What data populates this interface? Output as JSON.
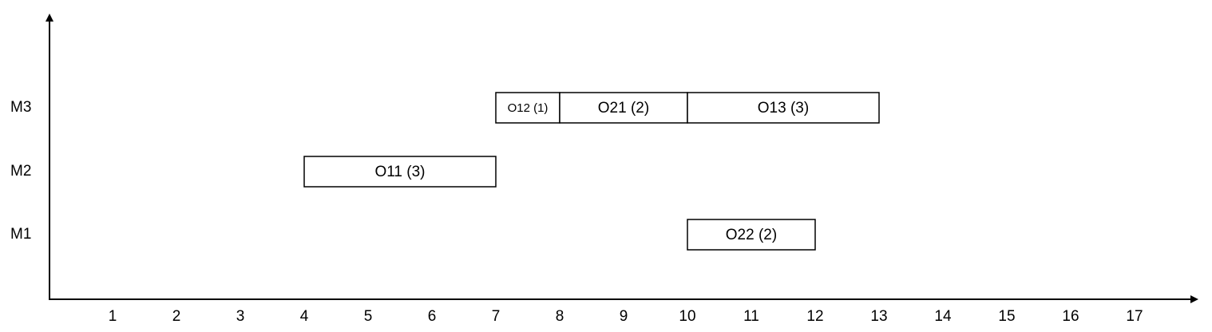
{
  "chart_data": {
    "type": "gantt",
    "title": "",
    "xlabel": "",
    "ylabel": "",
    "x_ticks": [
      1,
      2,
      3,
      4,
      5,
      6,
      7,
      8,
      9,
      10,
      11,
      12,
      13,
      14,
      15,
      16,
      17
    ],
    "xlim": [
      0,
      18
    ],
    "rows": [
      "M1",
      "M2",
      "M3"
    ],
    "tasks": [
      {
        "label": "O12 (1)",
        "row": "M3",
        "start": 7,
        "end": 8
      },
      {
        "label": "O21 (2)",
        "row": "M3",
        "start": 8,
        "end": 10
      },
      {
        "label": "O13 (3)",
        "row": "M3",
        "start": 10,
        "end": 13
      },
      {
        "label": "O11 (3)",
        "row": "M2",
        "start": 4,
        "end": 7
      },
      {
        "label": "O22 (2)",
        "row": "M1",
        "start": 10,
        "end": 12
      }
    ],
    "grid": false,
    "legend": "none",
    "colors": {
      "stroke": "#000000",
      "fill": "#ffffff"
    }
  }
}
